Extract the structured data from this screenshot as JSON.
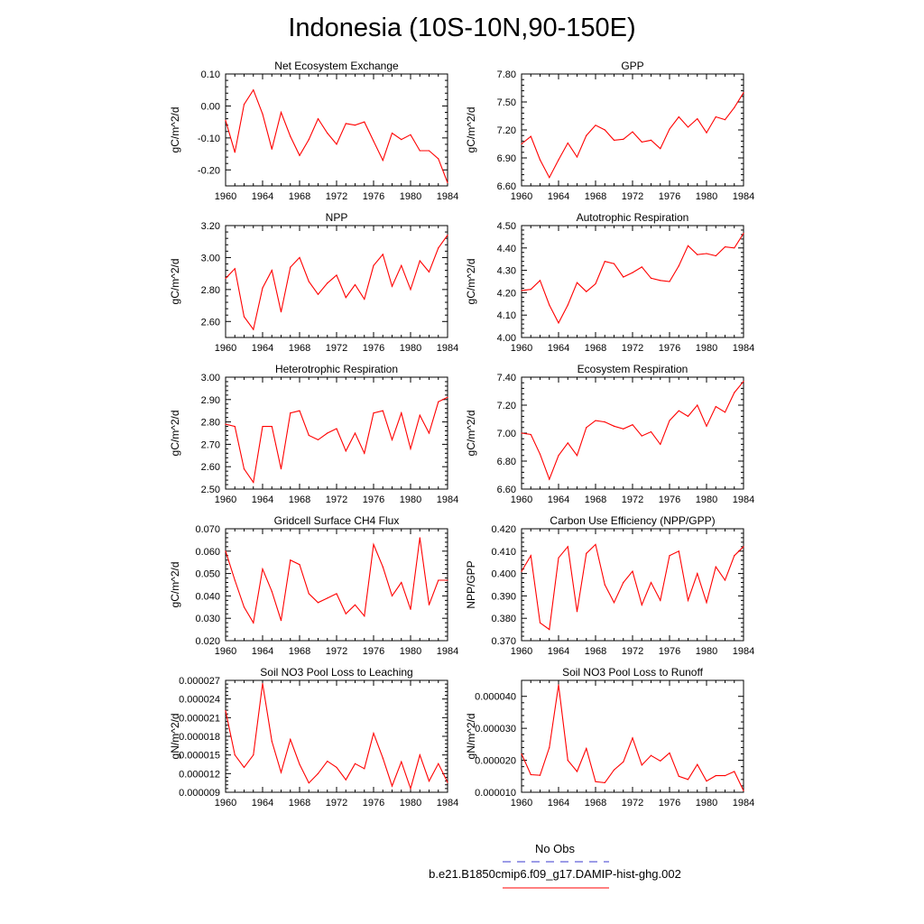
{
  "title": "Indonesia (10S-10N,90-150E)",
  "colors": {
    "series": "#ff0000",
    "obs": "#3a3acf",
    "axis": "#000000"
  },
  "chart_data": [
    {
      "type": "line",
      "title": "Net Ecosystem Exchange",
      "ylabel": "gC/m^2/d",
      "ylim": [
        -0.25,
        0.1
      ],
      "yticks": [
        "0.10",
        "0.00",
        "-0.10",
        "-0.20"
      ],
      "ytick_values": [
        0.1,
        0.0,
        -0.1,
        -0.2
      ],
      "xlim": [
        1960,
        1984
      ],
      "xticks": [
        "1960",
        "1964",
        "1968",
        "1972",
        "1976",
        "1980",
        "1984"
      ],
      "x": [
        1960,
        1961,
        1962,
        1963,
        1964,
        1965,
        1966,
        1967,
        1968,
        1969,
        1970,
        1971,
        1972,
        1973,
        1974,
        1975,
        1976,
        1977,
        1978,
        1979,
        1980,
        1981,
        1982,
        1983,
        1984
      ],
      "values": [
        -0.045,
        -0.145,
        0.005,
        0.05,
        -0.025,
        -0.135,
        -0.02,
        -0.095,
        -0.155,
        -0.105,
        -0.04,
        -0.085,
        -0.12,
        -0.055,
        -0.06,
        -0.05,
        -0.11,
        -0.17,
        -0.085,
        -0.105,
        -0.09,
        -0.14,
        -0.14,
        -0.165,
        -0.24
      ]
    },
    {
      "type": "line",
      "title": "GPP",
      "ylabel": "gC/m^2/d",
      "ylim": [
        6.6,
        7.8
      ],
      "yticks": [
        "7.80",
        "7.50",
        "7.20",
        "6.90",
        "6.60"
      ],
      "ytick_values": [
        7.8,
        7.5,
        7.2,
        6.9,
        6.6
      ],
      "xlim": [
        1960,
        1984
      ],
      "xticks": [
        "1960",
        "1964",
        "1968",
        "1972",
        "1976",
        "1980",
        "1984"
      ],
      "x": [
        1960,
        1961,
        1962,
        1963,
        1964,
        1965,
        1966,
        1967,
        1968,
        1969,
        1970,
        1971,
        1972,
        1973,
        1974,
        1975,
        1976,
        1977,
        1978,
        1979,
        1980,
        1981,
        1982,
        1983,
        1984
      ],
      "values": [
        7.05,
        7.13,
        6.88,
        6.69,
        6.88,
        7.06,
        6.91,
        7.14,
        7.25,
        7.2,
        7.09,
        7.1,
        7.18,
        7.07,
        7.09,
        7.0,
        7.21,
        7.34,
        7.23,
        7.32,
        7.17,
        7.34,
        7.31,
        7.44,
        7.6
      ]
    },
    {
      "type": "line",
      "title": "NPP",
      "ylabel": "gC/m^2/d",
      "ylim": [
        2.5,
        3.2
      ],
      "yticks": [
        "3.20",
        "3.00",
        "2.80",
        "2.60"
      ],
      "ytick_values": [
        3.2,
        3.0,
        2.8,
        2.6
      ],
      "xlim": [
        1960,
        1984
      ],
      "xticks": [
        "1960",
        "1964",
        "1968",
        "1972",
        "1976",
        "1980",
        "1984"
      ],
      "x": [
        1960,
        1961,
        1962,
        1963,
        1964,
        1965,
        1966,
        1967,
        1968,
        1969,
        1970,
        1971,
        1972,
        1973,
        1974,
        1975,
        1976,
        1977,
        1978,
        1979,
        1980,
        1981,
        1982,
        1983,
        1984
      ],
      "values": [
        2.87,
        2.93,
        2.63,
        2.55,
        2.81,
        2.92,
        2.66,
        2.94,
        3.0,
        2.85,
        2.77,
        2.84,
        2.89,
        2.75,
        2.83,
        2.74,
        2.95,
        3.02,
        2.82,
        2.95,
        2.8,
        2.98,
        2.91,
        3.06,
        3.14
      ]
    },
    {
      "type": "line",
      "title": "Autotrophic Respiration",
      "ylabel": "gC/m^2/d",
      "ylim": [
        4.0,
        4.5
      ],
      "yticks": [
        "4.50",
        "4.40",
        "4.30",
        "4.20",
        "4.10",
        "4.00"
      ],
      "ytick_values": [
        4.5,
        4.4,
        4.3,
        4.2,
        4.1,
        4.0
      ],
      "xlim": [
        1960,
        1984
      ],
      "xticks": [
        "1960",
        "1964",
        "1968",
        "1972",
        "1976",
        "1980",
        "1984"
      ],
      "x": [
        1960,
        1961,
        1962,
        1963,
        1964,
        1965,
        1966,
        1967,
        1968,
        1969,
        1970,
        1971,
        1972,
        1973,
        1974,
        1975,
        1976,
        1977,
        1978,
        1979,
        1980,
        1981,
        1982,
        1983,
        1984
      ],
      "values": [
        4.21,
        4.215,
        4.255,
        4.145,
        4.065,
        4.145,
        4.245,
        4.205,
        4.24,
        4.34,
        4.33,
        4.27,
        4.29,
        4.315,
        4.265,
        4.255,
        4.25,
        4.32,
        4.41,
        4.37,
        4.375,
        4.365,
        4.405,
        4.4,
        4.465
      ]
    },
    {
      "type": "line",
      "title": "Heterotrophic Respiration",
      "ylabel": "gC/m^2/d",
      "ylim": [
        2.5,
        3.0
      ],
      "yticks": [
        "3.00",
        "2.90",
        "2.80",
        "2.70",
        "2.60",
        "2.50"
      ],
      "ytick_values": [
        3.0,
        2.9,
        2.8,
        2.7,
        2.6,
        2.5
      ],
      "xlim": [
        1960,
        1984
      ],
      "xticks": [
        "1960",
        "1964",
        "1968",
        "1972",
        "1976",
        "1980",
        "1984"
      ],
      "x": [
        1960,
        1961,
        1962,
        1963,
        1964,
        1965,
        1966,
        1967,
        1968,
        1969,
        1970,
        1971,
        1972,
        1973,
        1974,
        1975,
        1976,
        1977,
        1978,
        1979,
        1980,
        1981,
        1982,
        1983,
        1984
      ],
      "values": [
        2.79,
        2.78,
        2.59,
        2.53,
        2.78,
        2.78,
        2.59,
        2.84,
        2.85,
        2.74,
        2.72,
        2.75,
        2.77,
        2.67,
        2.75,
        2.66,
        2.84,
        2.85,
        2.72,
        2.84,
        2.68,
        2.83,
        2.75,
        2.89,
        2.91
      ]
    },
    {
      "type": "line",
      "title": "Ecosystem Respiration",
      "ylabel": "gC/m^2/d",
      "ylim": [
        6.6,
        7.4
      ],
      "yticks": [
        "7.40",
        "7.20",
        "7.00",
        "6.80",
        "6.60"
      ],
      "ytick_values": [
        7.4,
        7.2,
        7.0,
        6.8,
        6.6
      ],
      "xlim": [
        1960,
        1984
      ],
      "xticks": [
        "1960",
        "1964",
        "1968",
        "1972",
        "1976",
        "1980",
        "1984"
      ],
      "x": [
        1960,
        1961,
        1962,
        1963,
        1964,
        1965,
        1966,
        1967,
        1968,
        1969,
        1970,
        1971,
        1972,
        1973,
        1974,
        1975,
        1976,
        1977,
        1978,
        1979,
        1980,
        1981,
        1982,
        1983,
        1984
      ],
      "values": [
        7.0,
        6.99,
        6.85,
        6.67,
        6.84,
        6.93,
        6.84,
        7.04,
        7.09,
        7.08,
        7.05,
        7.03,
        7.06,
        6.98,
        7.01,
        6.92,
        7.09,
        7.16,
        7.12,
        7.2,
        7.05,
        7.19,
        7.15,
        7.29,
        7.37
      ]
    },
    {
      "type": "line",
      "title": "Gridcell Surface CH4 Flux",
      "ylabel": "gC/m^2/d",
      "ylim": [
        0.02,
        0.07
      ],
      "yticks": [
        "0.070",
        "0.060",
        "0.050",
        "0.040",
        "0.030",
        "0.020"
      ],
      "ytick_values": [
        0.07,
        0.06,
        0.05,
        0.04,
        0.03,
        0.02
      ],
      "xlim": [
        1960,
        1984
      ],
      "xticks": [
        "1960",
        "1964",
        "1968",
        "1972",
        "1976",
        "1980",
        "1984"
      ],
      "x": [
        1960,
        1961,
        1962,
        1963,
        1964,
        1965,
        1966,
        1967,
        1968,
        1969,
        1970,
        1971,
        1972,
        1973,
        1974,
        1975,
        1976,
        1977,
        1978,
        1979,
        1980,
        1981,
        1982,
        1983,
        1984
      ],
      "values": [
        0.06,
        0.047,
        0.035,
        0.028,
        0.052,
        0.042,
        0.029,
        0.056,
        0.054,
        0.041,
        0.037,
        0.039,
        0.041,
        0.032,
        0.036,
        0.031,
        0.063,
        0.053,
        0.04,
        0.046,
        0.034,
        0.066,
        0.036,
        0.047,
        0.047
      ]
    },
    {
      "type": "line",
      "title": "Carbon Use Efficiency (NPP/GPP)",
      "ylabel": "NPP/GPP",
      "ylim": [
        0.37,
        0.42
      ],
      "yticks": [
        "0.420",
        "0.410",
        "0.400",
        "0.390",
        "0.380",
        "0.370"
      ],
      "ytick_values": [
        0.42,
        0.41,
        0.4,
        0.39,
        0.38,
        0.37
      ],
      "xlim": [
        1960,
        1984
      ],
      "xticks": [
        "1960",
        "1964",
        "1968",
        "1972",
        "1976",
        "1980",
        "1984"
      ],
      "x": [
        1960,
        1961,
        1962,
        1963,
        1964,
        1965,
        1966,
        1967,
        1968,
        1969,
        1970,
        1971,
        1972,
        1973,
        1974,
        1975,
        1976,
        1977,
        1978,
        1979,
        1980,
        1981,
        1982,
        1983,
        1984
      ],
      "values": [
        0.401,
        0.408,
        0.378,
        0.375,
        0.407,
        0.412,
        0.383,
        0.409,
        0.413,
        0.395,
        0.387,
        0.396,
        0.401,
        0.386,
        0.396,
        0.388,
        0.408,
        0.41,
        0.388,
        0.4,
        0.387,
        0.403,
        0.397,
        0.408,
        0.412
      ]
    },
    {
      "type": "line",
      "title": "Soil NO3 Pool Loss to Leaching",
      "ylabel": "gN/m^2/d",
      "ylim": [
        9e-06,
        2.7e-05
      ],
      "yticks": [
        "0.000027",
        "0.000024",
        "0.000021",
        "0.000018",
        "0.000015",
        "0.000012",
        "0.000009"
      ],
      "ytick_values": [
        2.7e-05,
        2.4e-05,
        2.1e-05,
        1.8e-05,
        1.5e-05,
        1.2e-05,
        9e-06
      ],
      "xlim": [
        1960,
        1984
      ],
      "xticks": [
        "1960",
        "1964",
        "1968",
        "1972",
        "1976",
        "1980",
        "1984"
      ],
      "x": [
        1960,
        1961,
        1962,
        1963,
        1964,
        1965,
        1966,
        1967,
        1968,
        1969,
        1970,
        1971,
        1972,
        1973,
        1974,
        1975,
        1976,
        1977,
        1978,
        1979,
        1980,
        1981,
        1982,
        1983,
        1984
      ],
      "values": [
        2.21e-05,
        1.5e-05,
        1.3e-05,
        1.5e-05,
        2.65e-05,
        1.72e-05,
        1.22e-05,
        1.75e-05,
        1.35e-05,
        1.05e-05,
        1.2e-05,
        1.4e-05,
        1.3e-05,
        1.1e-05,
        1.36e-05,
        1.28e-05,
        1.85e-05,
        1.45e-05,
        1e-05,
        1.39e-05,
        9.6e-06,
        1.5e-05,
        1.08e-05,
        1.36e-05,
        1.06e-05
      ]
    },
    {
      "type": "line",
      "title": "Soil NO3 Pool Loss to Runoff",
      "ylabel": "gN/m^2/d",
      "ylim": [
        1e-05,
        4.5e-05
      ],
      "yticks": [
        "0.000040",
        "0.000030",
        "0.000020",
        "0.000010"
      ],
      "ytick_values": [
        4e-05,
        3e-05,
        2e-05,
        1e-05
      ],
      "xlim": [
        1960,
        1984
      ],
      "xticks": [
        "1960",
        "1964",
        "1968",
        "1972",
        "1976",
        "1980",
        "1984"
      ],
      "x": [
        1960,
        1961,
        1962,
        1963,
        1964,
        1965,
        1966,
        1967,
        1968,
        1969,
        1970,
        1971,
        1972,
        1973,
        1974,
        1975,
        1976,
        1977,
        1978,
        1979,
        1980,
        1981,
        1982,
        1983,
        1984
      ],
      "values": [
        2.2e-05,
        1.55e-05,
        1.53e-05,
        2.4e-05,
        4.36e-05,
        2e-05,
        1.65e-05,
        2.37e-05,
        1.33e-05,
        1.3e-05,
        1.7e-05,
        1.95e-05,
        2.7e-05,
        1.85e-05,
        2.15e-05,
        1.98e-05,
        2.23e-05,
        1.5e-05,
        1.4e-05,
        1.87e-05,
        1.35e-05,
        1.52e-05,
        1.52e-05,
        1.65e-05,
        1.05e-05
      ]
    }
  ],
  "legend": [
    {
      "label": "No Obs",
      "style": "dashed",
      "color": "#3a3acf"
    },
    {
      "label": "b.e21.B1850cmip6.f09_g17.DAMIP-hist-ghg.002",
      "style": "solid",
      "color": "#ff0000"
    }
  ]
}
